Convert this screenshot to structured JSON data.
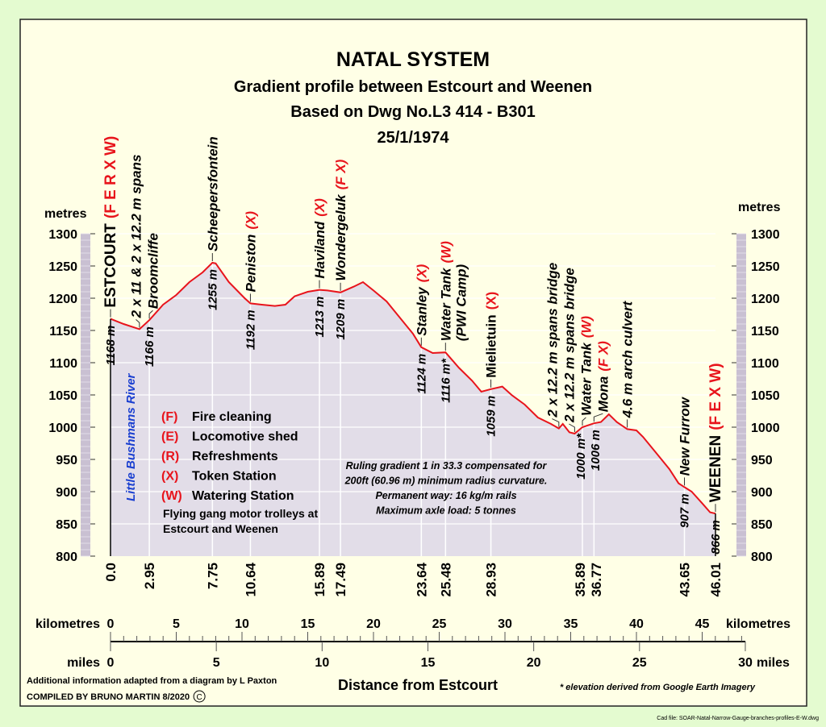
{
  "header": {
    "title": "NATAL SYSTEM",
    "subtitle1": "Gradient profile between Estcourt and Weenen",
    "subtitle2": "Based on Dwg No.L3 414 - B301",
    "date": "25/1/1974"
  },
  "colors": {
    "background": "#e4fbd0",
    "panel": "#ffffe6",
    "fill": "#e2dde8",
    "profile": "#e8141c",
    "code": "#e8141c",
    "river": "#1a3fd0"
  },
  "chart_data": {
    "type": "area",
    "ylabel_left": "metres",
    "ylabel_right": "metres",
    "ylim": [
      800,
      1300
    ],
    "yticks": [
      800,
      850,
      900,
      950,
      1000,
      1050,
      1100,
      1150,
      1200,
      1250,
      1300
    ],
    "xlabel": "Distance from Estcourt",
    "km_axis": {
      "label": "kilometres",
      "ticks": [
        0,
        5,
        10,
        15,
        20,
        25,
        30,
        35,
        40,
        45
      ]
    },
    "miles_axis": {
      "label": "miles",
      "ticks": [
        0,
        5,
        10,
        15,
        20,
        25,
        30
      ]
    },
    "grid": true,
    "profile_km_elev": [
      [
        0,
        1168
      ],
      [
        1,
        1160
      ],
      [
        2.2,
        1152
      ],
      [
        2.95,
        1166
      ],
      [
        4,
        1190
      ],
      [
        5,
        1205
      ],
      [
        6,
        1225
      ],
      [
        7,
        1240
      ],
      [
        7.75,
        1255
      ],
      [
        8,
        1254
      ],
      [
        9,
        1225
      ],
      [
        10.2,
        1200
      ],
      [
        10.64,
        1192
      ],
      [
        11.5,
        1190
      ],
      [
        12.5,
        1188
      ],
      [
        13.3,
        1190
      ],
      [
        14,
        1203
      ],
      [
        15,
        1210
      ],
      [
        15.89,
        1213
      ],
      [
        16.5,
        1212
      ],
      [
        17.49,
        1209
      ],
      [
        18.5,
        1218
      ],
      [
        19.2,
        1225
      ],
      [
        20,
        1212
      ],
      [
        21,
        1195
      ],
      [
        22,
        1170
      ],
      [
        23,
        1145
      ],
      [
        23.64,
        1124
      ],
      [
        24.5,
        1115
      ],
      [
        25.48,
        1116
      ],
      [
        26.5,
        1092
      ],
      [
        27.5,
        1072
      ],
      [
        28.2,
        1055
      ],
      [
        28.93,
        1059
      ],
      [
        29.8,
        1063
      ],
      [
        30.5,
        1050
      ],
      [
        31.5,
        1035
      ],
      [
        32.5,
        1015
      ],
      [
        33.5,
        1005
      ],
      [
        34.1,
        998
      ],
      [
        34.4,
        1005
      ],
      [
        34.9,
        992
      ],
      [
        35.3,
        990
      ],
      [
        35.89,
        1000
      ],
      [
        36.77,
        1006
      ],
      [
        37.3,
        1008
      ],
      [
        37.9,
        1020
      ],
      [
        38.5,
        1008
      ],
      [
        39.3,
        997
      ],
      [
        40,
        995
      ],
      [
        40.5,
        985
      ],
      [
        41.5,
        960
      ],
      [
        42.5,
        935
      ],
      [
        43.2,
        913
      ],
      [
        43.65,
        907
      ],
      [
        44.2,
        900
      ],
      [
        45,
        882
      ],
      [
        45.6,
        868
      ],
      [
        46.01,
        866
      ]
    ],
    "stations": [
      {
        "name": "ESTCOURT",
        "code": "(F E R X W)",
        "km": 0,
        "km_label": "0.0",
        "elev_label": "1168 m",
        "italic": false
      },
      {
        "name": "2 x 11 & 2 x 12.2 m spans",
        "code": "",
        "km": 2.2,
        "km_label": "",
        "elev_label": "",
        "italic": true
      },
      {
        "name": "Broomcliffe",
        "code": "",
        "km": 2.95,
        "km_label": "2.95",
        "elev_label": "1166 m",
        "italic": true
      },
      {
        "name": "Scheepersfontein",
        "code": "",
        "km": 7.75,
        "km_label": "7.75",
        "elev_label": "1255 m",
        "italic": true
      },
      {
        "name": "Peniston",
        "code": "(X)",
        "km": 10.64,
        "km_label": "10.64",
        "elev_label": "1192 m",
        "italic": true
      },
      {
        "name": "Haviland",
        "code": "(X)",
        "km": 15.89,
        "km_label": "15.89",
        "elev_label": "1213 m",
        "italic": true
      },
      {
        "name": "Wondergeluk",
        "code": "(F X)",
        "km": 17.49,
        "km_label": "17.49",
        "elev_label": "1209 m",
        "italic": true
      },
      {
        "name": "Stanley",
        "code": "(X)",
        "km": 23.64,
        "km_label": "23.64",
        "elev_label": "1124 m",
        "italic": true
      },
      {
        "name": "Water Tank",
        "code": "(W)",
        "sub": "(PWI Camp)",
        "km": 25.48,
        "km_label": "25.48",
        "elev_label": "1116 m*",
        "italic": true
      },
      {
        "name": "Mielietuin",
        "code": "(X)",
        "km": 28.93,
        "km_label": "28.93",
        "elev_label": "1059 m",
        "italic": false
      },
      {
        "name": "2 x 12.2 m spans bridge",
        "code": "",
        "km": 34.1,
        "km_label": "",
        "elev_label": "",
        "italic": true
      },
      {
        "name": "2 x 12.2 m spans bridge",
        "code": "",
        "km": 35.3,
        "km_label": "",
        "elev_label": "",
        "italic": true
      },
      {
        "name": "Water Tank",
        "code": "(W)",
        "km": 35.89,
        "km_label": "35.89",
        "elev_label": "1000 m*",
        "italic": true
      },
      {
        "name": "Mona",
        "code": "(F X)",
        "km": 36.77,
        "km_label": "36.77",
        "elev_label": "1006 m",
        "italic": true
      },
      {
        "name": "4.6 m arch culvert",
        "code": "",
        "km": 39.3,
        "km_label": "",
        "elev_label": "",
        "italic": true
      },
      {
        "name": "New Furrow",
        "code": "",
        "km": 43.65,
        "km_label": "43.65",
        "elev_label": "907 m",
        "italic": true
      },
      {
        "name": "WEENEN",
        "code": "(F E X W)",
        "km": 46.01,
        "km_label": "46.01",
        "elev_label": "866 m",
        "italic": false
      }
    ],
    "river_label": "Little Bushmans River"
  },
  "legend": [
    {
      "code": "(F)",
      "text": "Fire cleaning"
    },
    {
      "code": "(E)",
      "text": "Locomotive shed"
    },
    {
      "code": "(R)",
      "text": "Refreshments"
    },
    {
      "code": "(X)",
      "text": "Token Station"
    },
    {
      "code": "(W)",
      "text": "Watering Station"
    }
  ],
  "legend_note1": "Flying gang motor trolleys at",
  "legend_note2": "Estcourt and Weenen",
  "notes": [
    "Ruling gradient 1 in 33.3 compensated for",
    "200ft (60.96 m) minimum radius curvature.",
    "Permanent way: 16 kg/m rails",
    "Maximum axle load: 5 tonnes"
  ],
  "footer": {
    "source": "Additional information adapted from a diagram by L Paxton",
    "compiled": "COMPILED BY BRUNO MARTIN 8/2020",
    "copyright": "C",
    "footnote": "* elevation derived from Google Earth Imagery",
    "cad_file": "Cad file: SOAR-Natal-Narrow-Gauge-branches-profiles-E-W.dwg"
  }
}
